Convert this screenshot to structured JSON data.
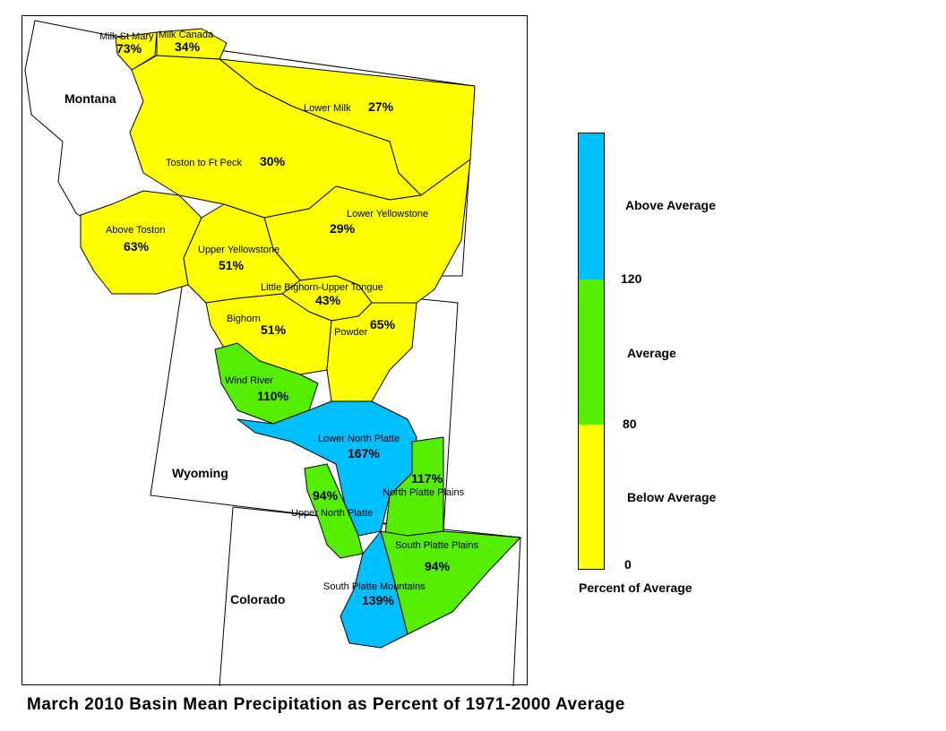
{
  "title": "March 2010 Basin Mean Precipitation as Percent of 1971-2000 Average",
  "colors": {
    "above": "#00BFFF",
    "average": "#55EE00",
    "below": "#FFFF00",
    "outline": "#000000"
  },
  "states": {
    "montana": "Montana",
    "wyoming": "Wyoming",
    "colorado": "Colorado"
  },
  "basins": [
    {
      "name": "Milk St Mary",
      "percent": "73%",
      "category": "below"
    },
    {
      "name": "Milk Canada",
      "percent": "34%",
      "category": "below"
    },
    {
      "name": "Lower Milk",
      "percent": "27%",
      "category": "below"
    },
    {
      "name": "Toston to Ft Peck",
      "percent": "30%",
      "category": "below"
    },
    {
      "name": "Above Toston",
      "percent": "63%",
      "category": "below"
    },
    {
      "name": "Lower Yellowstone",
      "percent": "29%",
      "category": "below"
    },
    {
      "name": "Upper Yellowstone",
      "percent": "51%",
      "category": "below"
    },
    {
      "name": "Little Bighorn-Upper Tongue",
      "percent": "43%",
      "category": "below"
    },
    {
      "name": "Bighorn",
      "percent": "51%",
      "category": "below"
    },
    {
      "name": "Powder",
      "percent": "65%",
      "category": "below"
    },
    {
      "name": "Wind River",
      "percent": "110%",
      "category": "average"
    },
    {
      "name": "Lower North Platte",
      "percent": "167%",
      "category": "above"
    },
    {
      "name": "North Platte Plains",
      "percent": "117%",
      "category": "average"
    },
    {
      "name": "Upper North Platte",
      "percent": "94%",
      "category": "average"
    },
    {
      "name": "South Platte Plains",
      "percent": "94%",
      "category": "average"
    },
    {
      "name": "South Platte Mountains",
      "percent": "139%",
      "category": "above"
    }
  ],
  "legend": {
    "title": "Percent of Average",
    "classes": [
      {
        "label": "Above Average",
        "color": "#00BFFF",
        "from": 120,
        "to": 200
      },
      {
        "label": "Average",
        "color": "#55EE00",
        "from": 80,
        "to": 120
      },
      {
        "label": "Below Average",
        "color": "#FFFF00",
        "from": 0,
        "to": 80
      }
    ],
    "breaks": [
      "120",
      "80",
      "0"
    ]
  }
}
